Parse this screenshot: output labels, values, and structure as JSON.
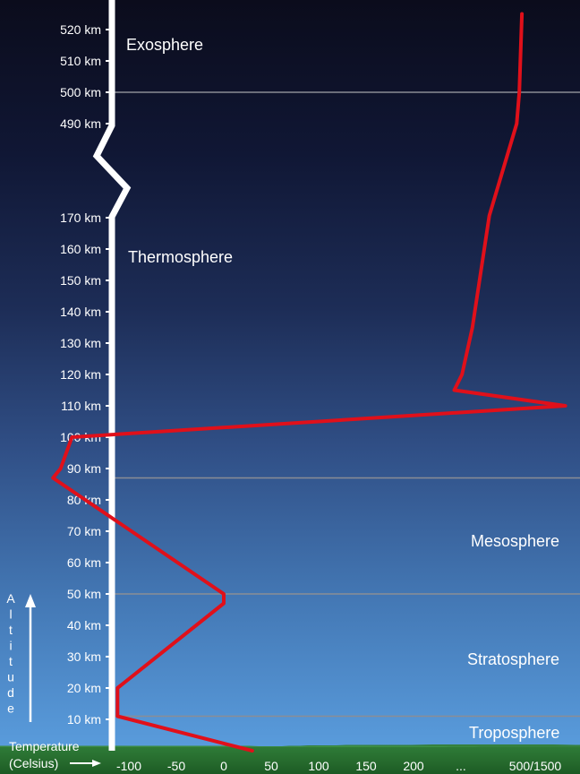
{
  "chart_data": {
    "type": "line",
    "xlabel": "Temperature\n(Celsius)",
    "ylabel": "Altitude",
    "x_ticks": [
      "-100",
      "-50",
      "0",
      "50",
      "100",
      "150",
      "200",
      "...",
      "500/1500"
    ],
    "y_ticks_lower": [
      "10 km",
      "20 km",
      "30 km",
      "40 km",
      "50 km",
      "60 km",
      "70 km",
      "80 km",
      "90 km",
      "100 km",
      "110 km",
      "120 km",
      "130 km",
      "140 km",
      "150 km",
      "160 km",
      "170 km"
    ],
    "y_ticks_upper": [
      "490 km",
      "500 km",
      "510 km",
      "520 km"
    ],
    "layers": [
      "Troposphere",
      "Stratosphere",
      "Mesosphere",
      "Thermosphere",
      "Exosphere"
    ],
    "boundaries_km": [
      11,
      50,
      87,
      500
    ],
    "series": [
      {
        "color": "#e0101a",
        "points": [
          {
            "temp": 15,
            "alt": 0
          },
          {
            "temp": -56,
            "alt": 11
          },
          {
            "temp": -56,
            "alt": 20
          },
          {
            "temp": 0,
            "alt": 47
          },
          {
            "temp": 0,
            "alt": 50
          },
          {
            "temp": -90,
            "alt": 87
          },
          {
            "temp": -86,
            "alt": 90
          },
          {
            "temp": -80,
            "alt": 100
          },
          {
            "temp": 180,
            "alt": 110
          },
          {
            "temp": 260,
            "alt": 115
          },
          {
            "temp": 290,
            "alt": 120
          },
          {
            "temp": 330,
            "alt": 135
          },
          {
            "temp": 395,
            "alt": 175
          },
          {
            "temp": 500,
            "alt": 490
          },
          {
            "temp": 510,
            "alt": 500
          },
          {
            "temp": 520,
            "alt": 525
          }
        ]
      }
    ],
    "grid": false,
    "colors": {
      "line": "#e0101a",
      "boundary": "#8a8d95",
      "axis": "#ffffff",
      "text": "#ffffff",
      "ground": "#2e7a37"
    }
  }
}
